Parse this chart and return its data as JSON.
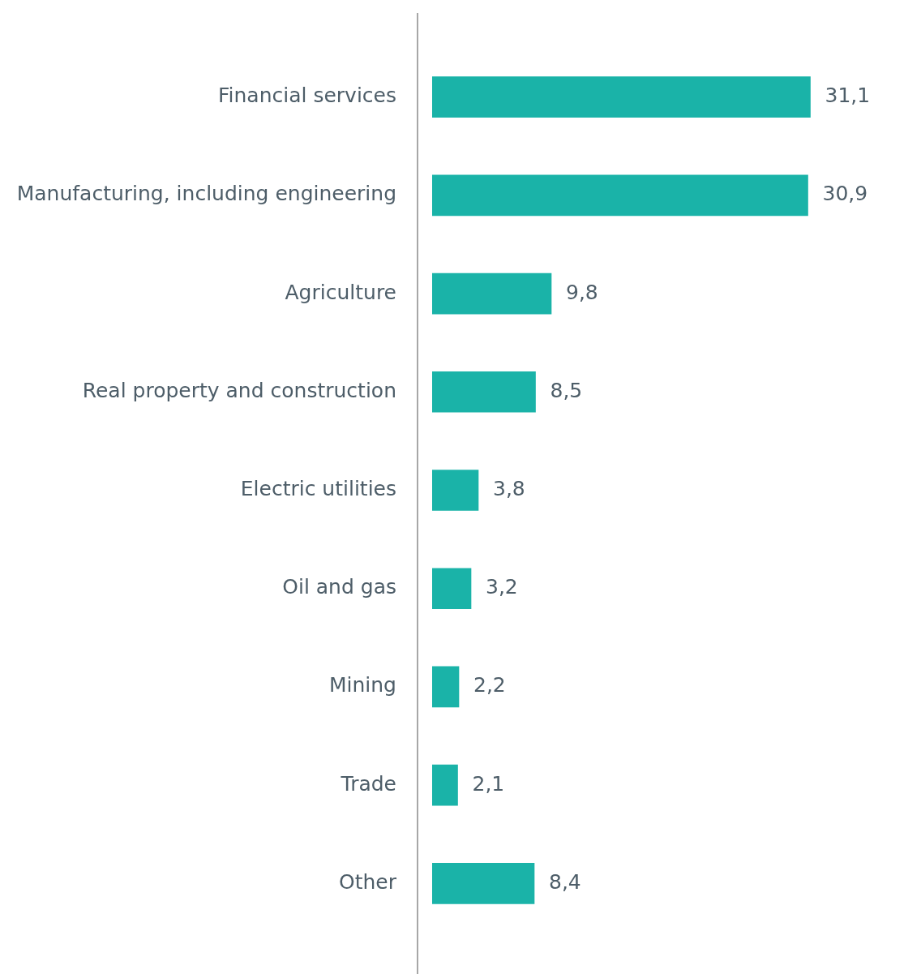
{
  "chart_data": {
    "type": "bar",
    "orientation": "horizontal",
    "categories": [
      "Financial services",
      "Manufacturing, including engineering",
      "Agriculture",
      "Real property and construction",
      "Electric utilities",
      "Oil and gas",
      "Mining",
      "Trade",
      "Other"
    ],
    "values": [
      31.1,
      30.9,
      9.8,
      8.5,
      3.8,
      3.2,
      2.2,
      2.1,
      8.4
    ],
    "value_labels": [
      "31,1",
      "30,9",
      "9,8",
      "8,5",
      "3,8",
      "3,2",
      "2,2",
      "2,1",
      "8,4"
    ],
    "color": "#1ab3a8"
  }
}
